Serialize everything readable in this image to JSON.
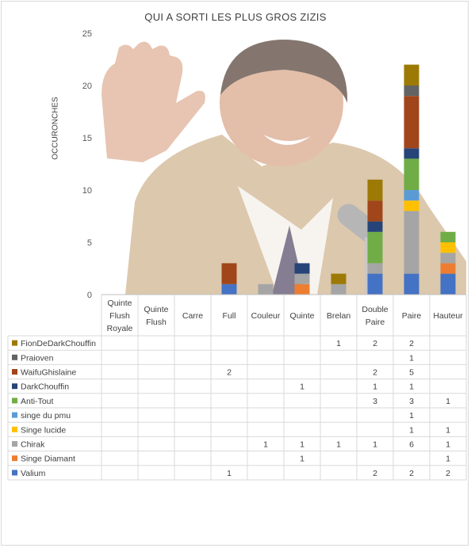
{
  "chart_data": {
    "type": "bar",
    "stacked": true,
    "title": "QUI A SORTI LES PLUS GROS ZIZIS",
    "xlabel": "",
    "ylabel": "OCCURONCHES",
    "ylim": [
      0,
      25
    ],
    "yticks": [
      "0",
      "5",
      "10",
      "15",
      "20",
      "25"
    ],
    "grid": false,
    "legend": "data-table",
    "categories": [
      "Quinte Flush Royale",
      "Quinte Flush",
      "Carre",
      "Full",
      "Couleur",
      "Quinte",
      "Brelan",
      "Double Paire",
      "Paire",
      "Hauteur"
    ],
    "category_lines": [
      [
        "Quinte",
        "Flush",
        "Royale"
      ],
      [
        "Quinte",
        "Flush"
      ],
      [
        "Carre"
      ],
      [
        "Full"
      ],
      [
        "Couleur"
      ],
      [
        "Quinte"
      ],
      [
        "Brelan"
      ],
      [
        "Double",
        "Paire"
      ],
      [
        "Paire"
      ],
      [
        "Hauteur"
      ]
    ],
    "series": [
      {
        "name": "FionDeDarkChouffin",
        "color": "#9c7a05",
        "values": [
          null,
          null,
          null,
          null,
          null,
          null,
          1,
          2,
          2,
          null
        ]
      },
      {
        "name": "Praioven",
        "color": "#636363",
        "values": [
          null,
          null,
          null,
          null,
          null,
          null,
          null,
          null,
          1,
          null
        ]
      },
      {
        "name": "WaifuGhislaine",
        "color": "#a0461a",
        "values": [
          null,
          null,
          null,
          2,
          null,
          null,
          null,
          2,
          5,
          null
        ]
      },
      {
        "name": "DarkChouffin",
        "color": "#264478",
        "values": [
          null,
          null,
          null,
          null,
          null,
          1,
          null,
          1,
          1,
          null
        ]
      },
      {
        "name": "Anti-Tout",
        "color": "#70ad47",
        "values": [
          null,
          null,
          null,
          null,
          null,
          null,
          null,
          3,
          3,
          1
        ]
      },
      {
        "name": "singe du pmu",
        "color": "#5b9bd5",
        "values": [
          null,
          null,
          null,
          null,
          null,
          null,
          null,
          null,
          1,
          null
        ]
      },
      {
        "name": "Singe lucide",
        "color": "#ffc000",
        "values": [
          null,
          null,
          null,
          null,
          null,
          null,
          null,
          null,
          1,
          1
        ]
      },
      {
        "name": "Chirak",
        "color": "#a5a5a5",
        "values": [
          null,
          null,
          null,
          null,
          1,
          1,
          1,
          1,
          6,
          1
        ]
      },
      {
        "name": "Singe Diamant",
        "color": "#ed7d31",
        "values": [
          null,
          null,
          null,
          null,
          null,
          1,
          null,
          null,
          null,
          1
        ]
      },
      {
        "name": "Valium",
        "color": "#4472c4",
        "values": [
          null,
          null,
          null,
          1,
          null,
          null,
          null,
          2,
          2,
          2
        ]
      }
    ]
  },
  "background_image": {
    "description": "photo of a laughing man in a beige suit with a raised hand and a microphone"
  }
}
